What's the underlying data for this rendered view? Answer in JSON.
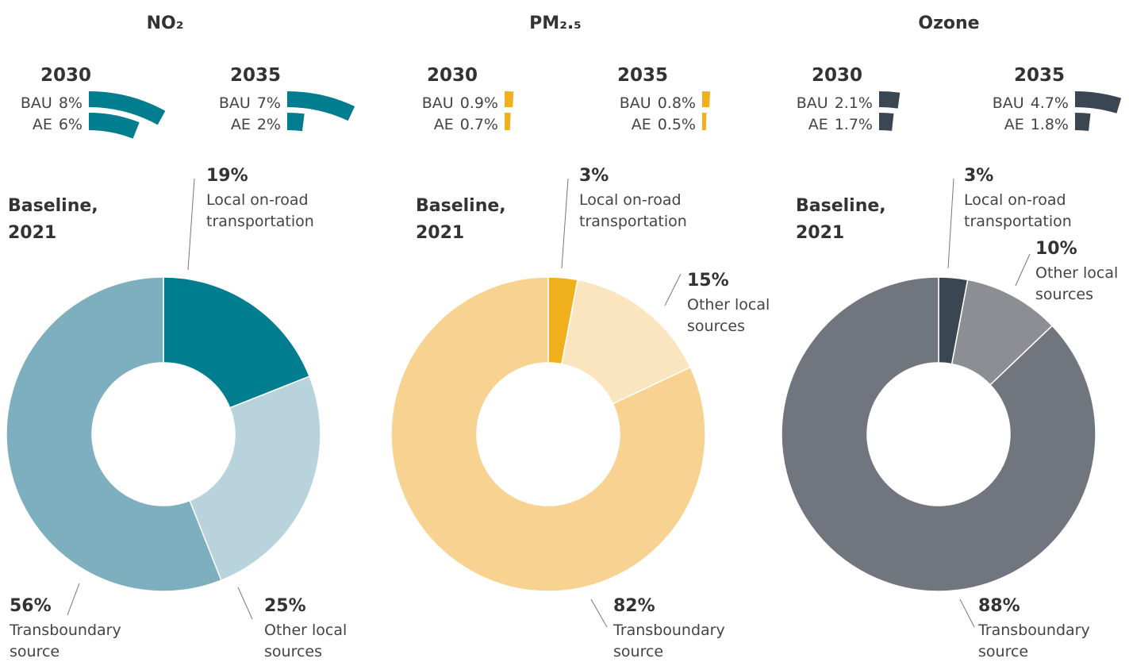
{
  "chart_data": [
    {
      "type": "pie",
      "title": "NO₂",
      "baseline": [
        "Baseline,",
        "2021"
      ],
      "categories": [
        "Local on-road transportation",
        "Other local sources",
        "Transboundary source"
      ],
      "values": [
        19,
        25,
        56
      ],
      "value_labels": [
        "19%",
        "25%",
        "56%"
      ],
      "colors": [
        "#007e8f",
        "#b9d3dc",
        "#7eafbf"
      ],
      "projections": [
        {
          "year": "2030",
          "categories": [
            "BAU",
            "AE"
          ],
          "values": [
            8,
            6
          ],
          "value_labels": [
            "8%",
            "6%"
          ]
        },
        {
          "year": "2035",
          "categories": [
            "BAU",
            "AE"
          ],
          "values": [
            7,
            2
          ],
          "value_labels": [
            "7%",
            "2%"
          ]
        }
      ]
    },
    {
      "type": "pie",
      "title": "PM₂.₅",
      "baseline": [
        "Baseline,",
        "2021"
      ],
      "categories": [
        "Local on-road transportation",
        "Other local sources",
        "Transboundary source"
      ],
      "values": [
        3,
        15,
        82
      ],
      "value_labels": [
        "3%",
        "15%",
        "82%"
      ],
      "colors": [
        "#f0b01c",
        "#fbe5bf",
        "#f8d290"
      ],
      "projections": [
        {
          "year": "2030",
          "categories": [
            "BAU",
            "AE"
          ],
          "values": [
            0.9,
            0.7
          ],
          "value_labels": [
            "0.9%",
            "0.7%"
          ]
        },
        {
          "year": "2035",
          "categories": [
            "BAU",
            "AE"
          ],
          "values": [
            0.8,
            0.5
          ],
          "value_labels": [
            "0.8%",
            "0.5%"
          ]
        }
      ]
    },
    {
      "type": "pie",
      "title": "Ozone",
      "baseline": [
        "Baseline,",
        "2021"
      ],
      "categories": [
        "Local on-road transportation",
        "Other local sources",
        "Transboundary source"
      ],
      "values": [
        3,
        10,
        88
      ],
      "value_labels": [
        "3%",
        "10%",
        "88%"
      ],
      "colors": [
        "#3a4651",
        "#8d8e93",
        "#71757e"
      ],
      "projections": [
        {
          "year": "2030",
          "categories": [
            "BAU",
            "AE"
          ],
          "values": [
            2.1,
            1.7
          ],
          "value_labels": [
            "2.1%",
            "1.7%"
          ]
        },
        {
          "year": "2035",
          "categories": [
            "BAU",
            "AE"
          ],
          "values": [
            4.7,
            1.8
          ],
          "value_labels": [
            "4.7%",
            "1.8%"
          ]
        }
      ]
    }
  ]
}
